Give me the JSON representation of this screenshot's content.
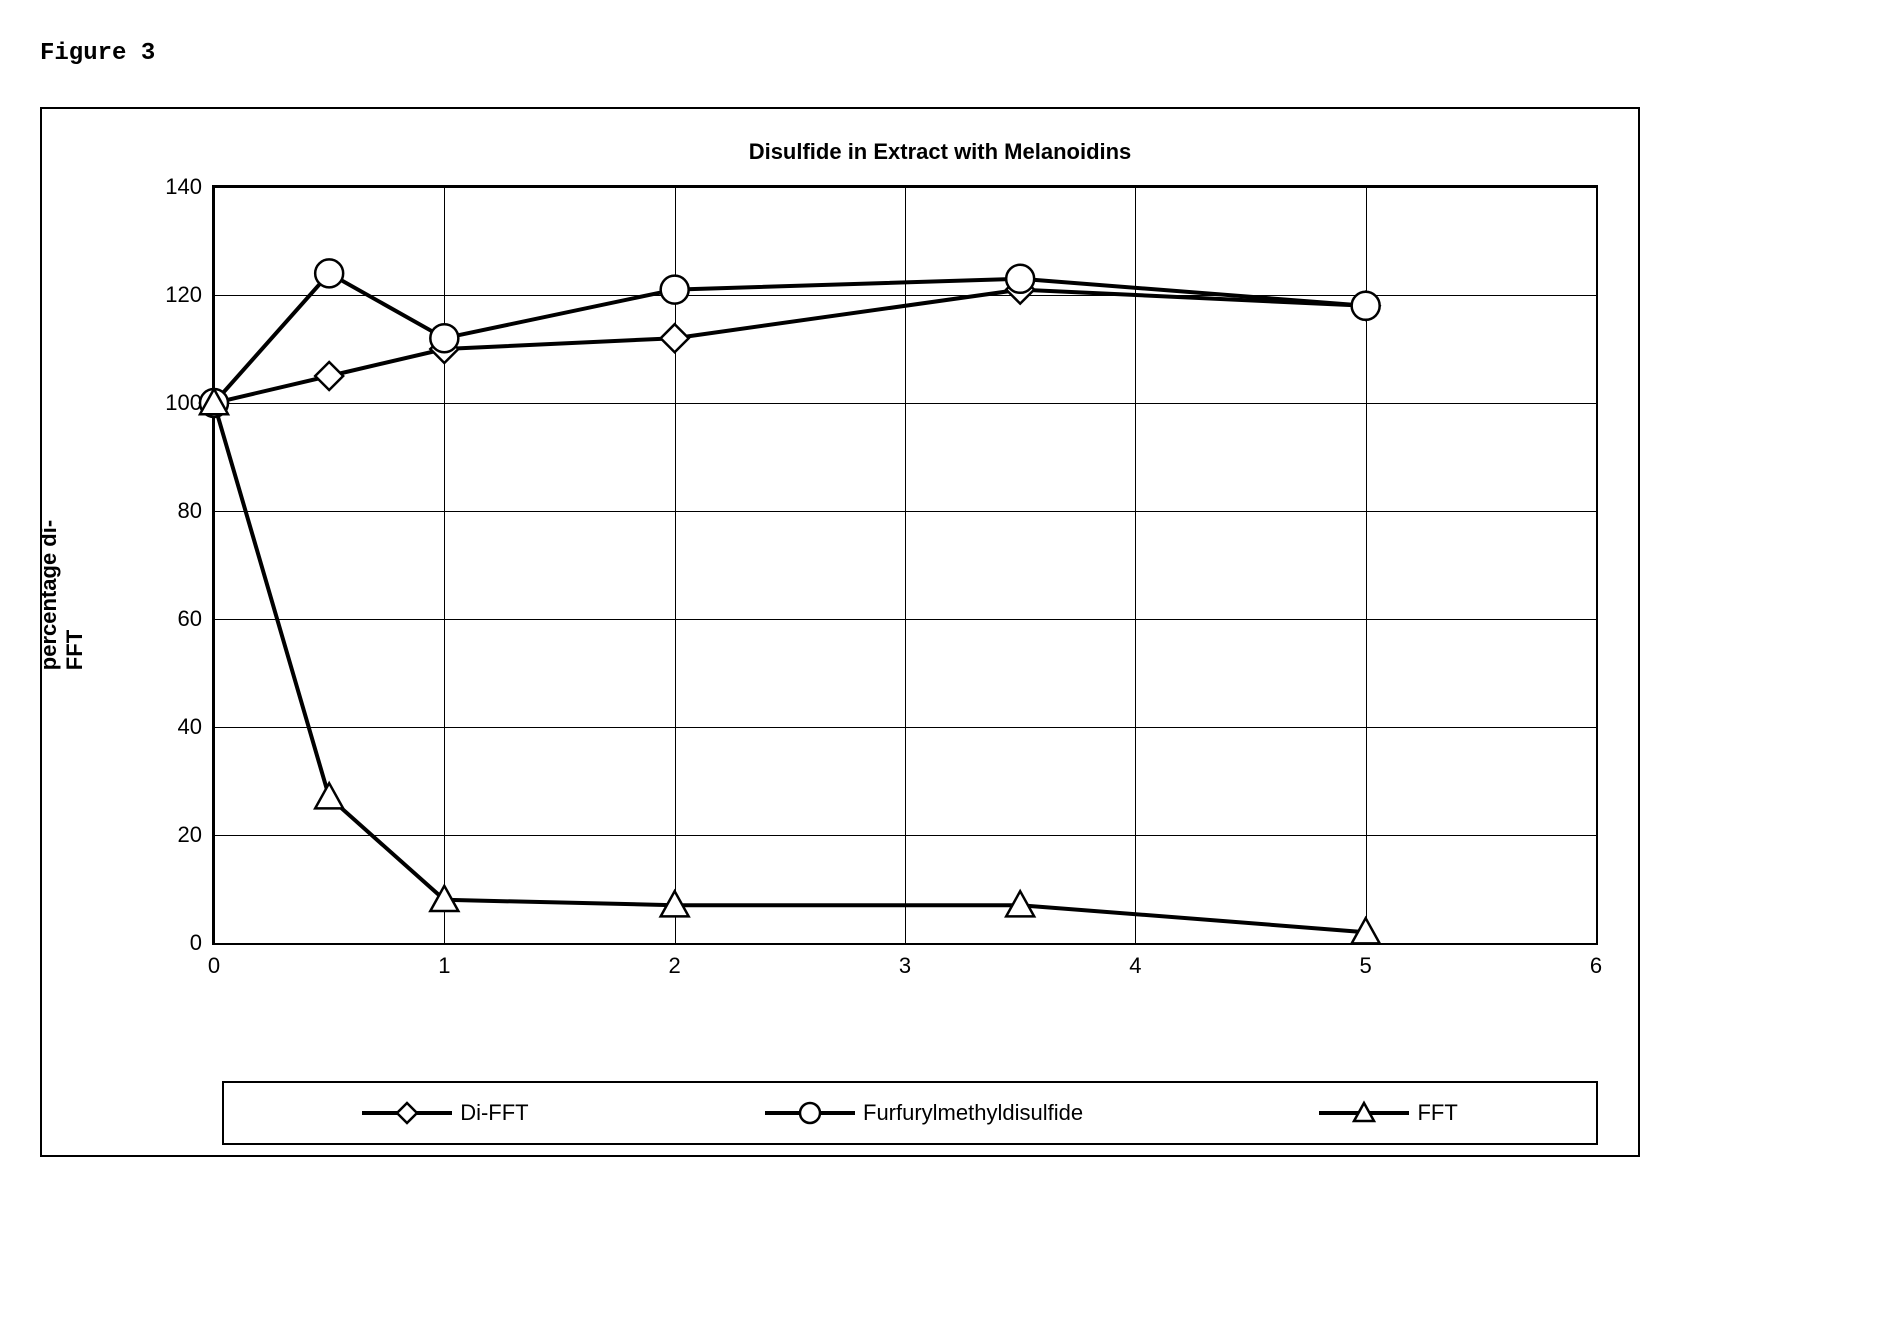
{
  "figure_label": "Figure 3",
  "chart": {
    "type": "line",
    "title": "Disulfide in Extract with Melanoidins",
    "ylabel": "percentage di-\nFFT",
    "title_fontsize": 22,
    "label_fontsize": 22,
    "tick_fontsize": 22,
    "xlim": [
      0,
      6
    ],
    "ylim": [
      0,
      140
    ],
    "xtick_step": 1,
    "ytick_step": 20,
    "xticks": [
      0,
      1,
      2,
      3,
      4,
      5,
      6
    ],
    "yticks": [
      0,
      20,
      40,
      60,
      80,
      100,
      120,
      140
    ],
    "background_color": "#ffffff",
    "grid_color": "#000000",
    "line_color": "#000000",
    "line_width": 4,
    "marker_size": 14,
    "marker_fill": "#ffffff",
    "marker_stroke": "#000000",
    "marker_stroke_width": 2.5,
    "series": [
      {
        "name": "Di-FFT",
        "marker": "diamond",
        "x": [
          0,
          0.5,
          1,
          2,
          3.5,
          5
        ],
        "y": [
          100,
          105,
          110,
          112,
          121,
          118
        ]
      },
      {
        "name": "Furfurylmethyldisulfide",
        "marker": "circle",
        "x": [
          0,
          0.5,
          1,
          2,
          3.5,
          5
        ],
        "y": [
          100,
          124,
          112,
          121,
          123,
          118
        ]
      },
      {
        "name": "FFT",
        "marker": "triangle",
        "x": [
          0,
          0.5,
          1,
          2,
          3.5,
          5
        ],
        "y": [
          100,
          27,
          8,
          7,
          7,
          2
        ]
      }
    ],
    "legend_position": "bottom"
  }
}
